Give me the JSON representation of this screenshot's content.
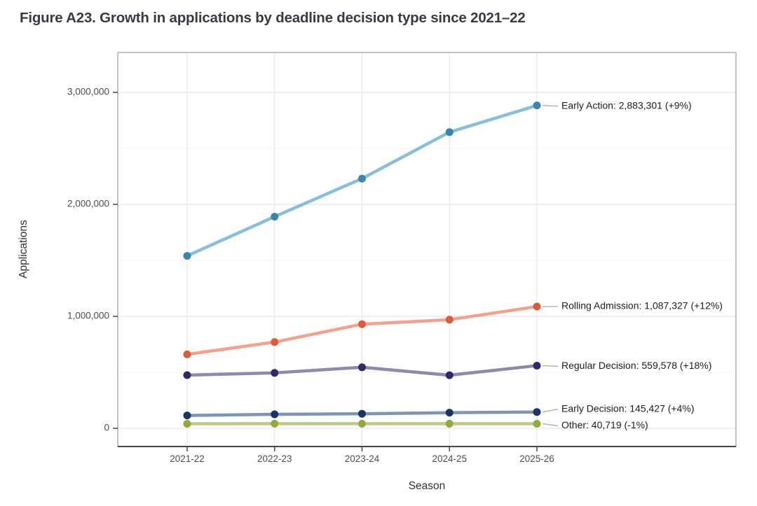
{
  "title": "Figure A23. Growth in applications by deadline decision type since 2021–22",
  "chart_data": {
    "type": "line",
    "title": "Figure A23. Growth in applications by deadline decision type since 2021–22",
    "xlabel": "Season",
    "ylabel": "Applications",
    "categories": [
      "2021-22",
      "2022-23",
      "2023-24",
      "2024-25",
      "2025-26"
    ],
    "ytick_values": [
      0,
      1000000,
      2000000,
      3000000
    ],
    "ytick_labels": [
      "0",
      "1,000,000",
      "2,000,000",
      "3,000,000"
    ],
    "ylim": [
      0,
      3000000
    ],
    "y_minor_step": 500000,
    "grid": "major and minor horizontal gridlines, vertical gridlines at each season",
    "legend_position": "inline end-of-line labels at right",
    "series": [
      {
        "name": "Early Action",
        "values": [
          1540000,
          1890000,
          2230000,
          2645000,
          2883301
        ],
        "final_value": 2883301,
        "pct_change": "+9%",
        "end_label": "Early Action: 2,883,301 (+9%)",
        "line_color": "#89bedb",
        "point_color": "#3a84ad"
      },
      {
        "name": "Rolling Admission",
        "values": [
          660000,
          770000,
          930000,
          970000,
          1087327
        ],
        "final_value": 1087327,
        "pct_change": "+12%",
        "end_label": "Rolling Admission: 1,087,327 (+12%)",
        "line_color": "#efa38e",
        "point_color": "#dc5b3c"
      },
      {
        "name": "Regular Decision",
        "values": [
          475000,
          495000,
          545000,
          474000,
          559578
        ],
        "final_value": 559578,
        "pct_change": "+18%",
        "end_label": "Regular Decision: 559,578 (+18%)",
        "line_color": "#8e8aad",
        "point_color": "#2e2a63"
      },
      {
        "name": "Early Decision",
        "values": [
          115000,
          125000,
          130000,
          139800,
          145427
        ],
        "final_value": 145427,
        "pct_change": "+4%",
        "end_label": "Early Decision: 145,427 (+4%)",
        "line_color": "#7e96b5",
        "point_color": "#1a3463"
      },
      {
        "name": "Other",
        "values": [
          41000,
          41200,
          41100,
          41100,
          40719
        ],
        "final_value": 40719,
        "pct_change": "-1%",
        "end_label": "Other: 40,719 (-1%)",
        "line_color": "#bcca86",
        "point_color": "#94a840"
      }
    ]
  },
  "colors": {
    "background": "#ffffff",
    "title_text": "#3a3a40",
    "axis_text": "#4d4d4d",
    "axis_title_text": "#303030",
    "grid_major": "#e5e5e5",
    "grid_minor": "#f1f1f1",
    "panel_border": "#9b9b9b",
    "axis_line": "#464646",
    "connector": "#b0b0b0",
    "annotation_text": "#1c1c1c"
  }
}
